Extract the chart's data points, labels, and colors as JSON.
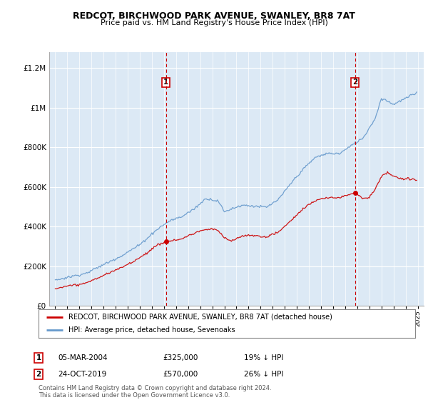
{
  "title": "REDCOT, BIRCHWOOD PARK AVENUE, SWANLEY, BR8 7AT",
  "subtitle": "Price paid vs. HM Land Registry's House Price Index (HPI)",
  "ylabel_ticks": [
    "£0",
    "£200K",
    "£400K",
    "£600K",
    "£800K",
    "£1M",
    "£1.2M"
  ],
  "ytick_values": [
    0,
    200000,
    400000,
    600000,
    800000,
    1000000,
    1200000
  ],
  "ylim": [
    0,
    1280000
  ],
  "xlim_start": 1994.5,
  "xlim_end": 2025.5,
  "sale1_year": 2004.17,
  "sale1_price": 325000,
  "sale2_year": 2019.81,
  "sale2_price": 570000,
  "red_line_color": "#cc0000",
  "blue_line_color": "#6699cc",
  "chart_bg_color": "#dce9f5",
  "bg_color": "#ffffff",
  "grid_color": "#ffffff",
  "legend_label_red": "REDCOT, BIRCHWOOD PARK AVENUE, SWANLEY, BR8 7AT (detached house)",
  "legend_label_blue": "HPI: Average price, detached house, Sevenoaks",
  "footer": "Contains HM Land Registry data © Crown copyright and database right 2024.\nThis data is licensed under the Open Government Licence v3.0.",
  "annotation1_num": "1",
  "annotation1_date": "05-MAR-2004",
  "annotation1_price": "£325,000",
  "annotation1_hpi": "19% ↓ HPI",
  "annotation2_num": "2",
  "annotation2_date": "24-OCT-2019",
  "annotation2_price": "£570,000",
  "annotation2_hpi": "26% ↓ HPI"
}
